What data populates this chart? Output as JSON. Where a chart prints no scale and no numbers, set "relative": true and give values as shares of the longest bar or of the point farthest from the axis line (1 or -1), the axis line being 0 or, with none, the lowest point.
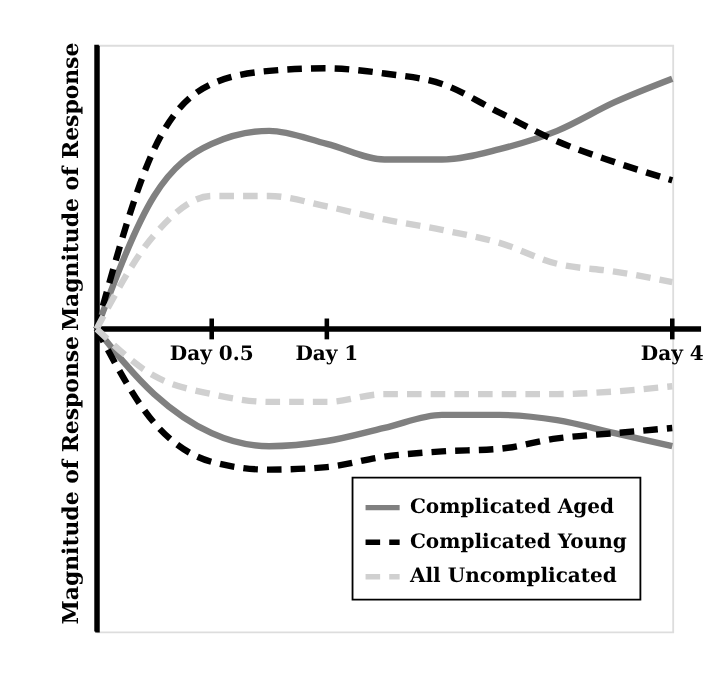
{
  "chart_data": {
    "type": "line",
    "relative": true,
    "ylabel": "Magnitude of Response",
    "annotations": [
      "Magnitude of Response"
    ],
    "categories": [
      null,
      null,
      "Day 0.5",
      null,
      "Day 1",
      null,
      null,
      null,
      null,
      null,
      "Day 4"
    ],
    "series": [
      {
        "name": "Complicated Aged",
        "color": "#808080",
        "line_style": "solid",
        "values": [
          0,
          0.51,
          0.71,
          0.76,
          0.71,
          0.65,
          0.65,
          0.69,
          0.76,
          0.87,
          0.96
        ]
      },
      {
        "name": "Complicated Young",
        "color": "#000000",
        "line_style": "dashed",
        "values": [
          0,
          0.69,
          0.94,
          0.99,
          1.0,
          0.98,
          0.94,
          0.83,
          0.72,
          0.64,
          0.57
        ]
      },
      {
        "name": "All Uncomplicated",
        "color": "#d0d0d0",
        "line_style": "dashed",
        "values": [
          0,
          0.36,
          0.51,
          0.51,
          0.47,
          0.42,
          0.38,
          0.33,
          0.25,
          0.22,
          0.18
        ]
      },
      {
        "color": "#808080",
        "line_style": "solid",
        "values": [
          0,
          -0.25,
          -0.4,
          -0.45,
          -0.43,
          -0.38,
          -0.33,
          -0.33,
          -0.35,
          -0.4,
          -0.45
        ]
      },
      {
        "color": "#000000",
        "line_style": "dashed",
        "values": [
          0,
          -0.36,
          -0.51,
          -0.54,
          -0.53,
          -0.49,
          -0.47,
          -0.46,
          -0.42,
          -0.4,
          -0.38
        ]
      },
      {
        "color": "#d0d0d0",
        "line_style": "dashed",
        "values": [
          0,
          -0.18,
          -0.25,
          -0.28,
          -0.28,
          -0.25,
          -0.25,
          -0.25,
          -0.25,
          -0.24,
          -0.22
        ]
      }
    ],
    "legend": "bottom right",
    "grid": false
  }
}
